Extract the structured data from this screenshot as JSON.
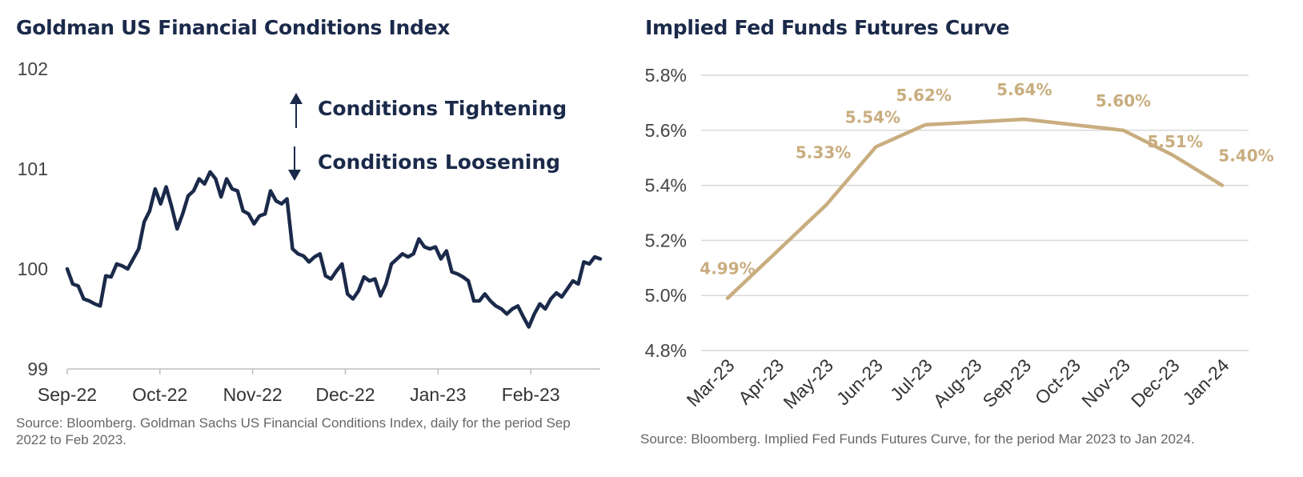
{
  "colors": {
    "navy": "#1b2a4a",
    "gold": "#c9ad7f",
    "grid": "#d9d9d9",
    "axis": "#bfbfbf"
  },
  "left": {
    "title": "Goldman US Financial Conditions Index",
    "source": "Source: Bloomberg. Goldman Sachs US Financial Conditions Index, daily for the period Sep 2022 to Feb 2023.",
    "legend": {
      "up_label": "Conditions Tightening",
      "down_label": "Conditions Loosening",
      "up_icon": "arrow-up-icon",
      "down_icon": "arrow-down-icon"
    }
  },
  "right": {
    "title": "Implied Fed Funds Futures Curve",
    "source": "Source: Bloomberg. Implied Fed Funds Futures Curve, for the period Mar 2023 to Jan 2024."
  },
  "chart_data": [
    {
      "type": "line",
      "title": "Goldman US Financial Conditions Index",
      "ylim": [
        99,
        102
      ],
      "yticks": [
        "99",
        "100",
        "101",
        "102"
      ],
      "xticks": [
        "Sep-22",
        "Oct-22",
        "Nov-22",
        "Dec-22",
        "Jan-23",
        "Feb-23"
      ],
      "grid": false,
      "series": [
        {
          "values": [
            100.0,
            99.85,
            99.83,
            99.7,
            99.68,
            99.65,
            99.63,
            99.93,
            99.92,
            100.05,
            100.03,
            100.0,
            100.1,
            100.2,
            100.47,
            100.58,
            100.8,
            100.65,
            100.82,
            100.62,
            100.4,
            100.55,
            100.73,
            100.78,
            100.9,
            100.85,
            100.97,
            100.9,
            100.72,
            100.9,
            100.8,
            100.78,
            100.58,
            100.55,
            100.45,
            100.53,
            100.55,
            100.78,
            100.68,
            100.65,
            100.7,
            100.2,
            100.15,
            100.13,
            100.07,
            100.12,
            100.15,
            99.93,
            99.9,
            99.98,
            100.05,
            99.75,
            99.7,
            99.78,
            99.92,
            99.88,
            99.9,
            99.73,
            99.85,
            100.05,
            100.1,
            100.15,
            100.12,
            100.15,
            100.3,
            100.22,
            100.2,
            100.22,
            100.1,
            100.18,
            99.97,
            99.95,
            99.92,
            99.88,
            99.68,
            99.68,
            99.75,
            99.68,
            99.63,
            99.6,
            99.55,
            99.6,
            99.63,
            99.52,
            99.42,
            99.55,
            99.65,
            99.6,
            99.7,
            99.76,
            99.72,
            99.8,
            99.88,
            99.85,
            100.07,
            100.05,
            100.12,
            100.1
          ]
        }
      ]
    },
    {
      "type": "line",
      "title": "Implied Fed Funds Futures Curve",
      "ylim": [
        4.8,
        5.8
      ],
      "yticks": [
        "4.8%",
        "5.0%",
        "5.2%",
        "5.4%",
        "5.6%",
        "5.8%"
      ],
      "categories": [
        "Mar-23",
        "Apr-23",
        "May-23",
        "Jun-23",
        "Jul-23",
        "Aug-23",
        "Sep-23",
        "Oct-23",
        "Nov-23",
        "Dec-23",
        "Jan-24"
      ],
      "grid": true,
      "series": [
        {
          "values": [
            4.99,
            5.16,
            5.33,
            5.54,
            5.62,
            5.63,
            5.64,
            5.62,
            5.6,
            5.51,
            5.4
          ],
          "data_labels": [
            {
              "index": 0,
              "text": "4.99%"
            },
            {
              "index": 2,
              "text": "5.33%"
            },
            {
              "index": 3,
              "text": "5.54%"
            },
            {
              "index": 4,
              "text": "5.62%"
            },
            {
              "index": 6,
              "text": "5.64%"
            },
            {
              "index": 8,
              "text": "5.60%"
            },
            {
              "index": 9,
              "text": "5.51%"
            },
            {
              "index": 10,
              "text": "5.40%"
            }
          ]
        }
      ]
    }
  ]
}
